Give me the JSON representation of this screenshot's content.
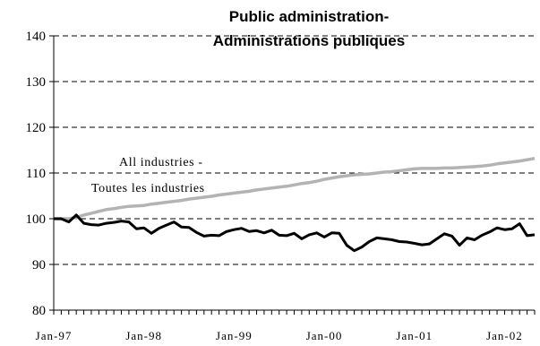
{
  "chart_data": {
    "type": "line",
    "title": [
      "Public administration-",
      "Administrations publiques"
    ],
    "xlabel": "",
    "ylabel": "",
    "ylim": [
      80,
      140
    ],
    "yticks": [
      "80",
      "90",
      "100",
      "110",
      "120",
      "130",
      "140"
    ],
    "x_start": "Jan-97",
    "x_end": "May-02",
    "xtick_labels": [
      "Jan-97",
      "Jan-98",
      "Jan-99",
      "Jan-00",
      "Jan-01",
      "Jan-02"
    ],
    "grid": "horizontal dashed",
    "annotations": [
      "All industries -",
      "Toutes les industries"
    ],
    "series": [
      {
        "color": "#b3b3b3",
        "values": [
          100.0,
          100.0,
          100.0,
          100.3,
          100.8,
          101.2,
          101.6,
          102.0,
          102.2,
          102.5,
          102.7,
          102.8,
          102.9,
          103.2,
          103.4,
          103.6,
          103.8,
          104.0,
          104.3,
          104.5,
          104.7,
          104.9,
          105.2,
          105.4,
          105.6,
          105.8,
          106.0,
          106.3,
          106.5,
          106.7,
          106.9,
          107.1,
          107.4,
          107.7,
          107.9,
          108.2,
          108.6,
          108.9,
          109.2,
          109.4,
          109.6,
          109.7,
          109.8,
          110.0,
          110.2,
          110.3,
          110.5,
          110.7,
          110.9,
          111.0,
          111.0,
          111.0,
          111.1,
          111.1,
          111.2,
          111.3,
          111.4,
          111.5,
          111.7,
          112.0,
          112.2,
          112.4,
          112.6,
          112.9,
          113.2
        ]
      },
      {
        "color": "#000000",
        "values": [
          100.0,
          100.0,
          99.3,
          100.8,
          99.0,
          98.7,
          98.6,
          99.0,
          99.2,
          99.5,
          99.3,
          97.8,
          98.0,
          96.8,
          97.9,
          98.6,
          99.3,
          98.2,
          98.1,
          97.0,
          96.2,
          96.4,
          96.3,
          97.2,
          97.6,
          97.9,
          97.2,
          97.4,
          96.9,
          97.5,
          96.4,
          96.3,
          96.8,
          95.6,
          96.5,
          96.9,
          96.0,
          96.9,
          96.8,
          94.2,
          93.0,
          93.8,
          95.0,
          95.8,
          95.6,
          95.4,
          95.0,
          94.9,
          94.6,
          94.3,
          94.5,
          95.6,
          96.7,
          96.2,
          94.2,
          95.8,
          95.4,
          96.4,
          97.1,
          98.0,
          97.6,
          97.8,
          98.9,
          96.3,
          96.5
        ]
      }
    ]
  }
}
